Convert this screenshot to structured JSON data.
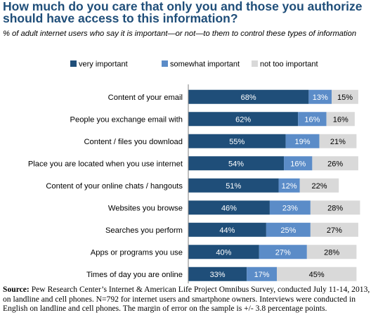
{
  "title": "How much do you care that only you and those you authorize should have access to this information?",
  "subtitle": "% of adult internet users who say it is important—or not—to them to control these types of information",
  "chart_data": {
    "type": "bar",
    "orientation": "horizontal",
    "stacked": true,
    "categories": [
      "Content of your email",
      "People you exchange email with",
      "Content / files you download",
      "Place you are located when you use internet",
      "Content of your online chats / hangouts",
      "Websites you browse",
      "Searches you perform",
      "Apps or programs you use",
      "Times of day you are online"
    ],
    "series": [
      {
        "name": "very important",
        "color": "#1f4e79",
        "values": [
          68,
          62,
          55,
          54,
          51,
          46,
          44,
          40,
          33
        ]
      },
      {
        "name": "somewhat important",
        "color": "#5b8cc8",
        "values": [
          13,
          16,
          19,
          16,
          12,
          23,
          25,
          27,
          17
        ]
      },
      {
        "name": "not too important",
        "color": "#d9d9d9",
        "values": [
          15,
          16,
          21,
          26,
          22,
          28,
          27,
          28,
          45
        ]
      }
    ],
    "value_suffix": "%",
    "xlim": [
      0,
      100
    ],
    "xticks": [
      "0%",
      "20%",
      "40%",
      "60%",
      "80%",
      "100%"
    ],
    "legend_position": "top",
    "grid": false
  },
  "source_label": "Source:",
  "source_text": "Pew Research Center’s Internet & American Life Project Omnibus Survey, conducted July 11-14, 2013, on landline and cell phones. N=792 for internet users and smartphone owners. Interviews were conducted in English on landline and cell phones. The margin of error on the sample is +/- 3.8 percentage points."
}
